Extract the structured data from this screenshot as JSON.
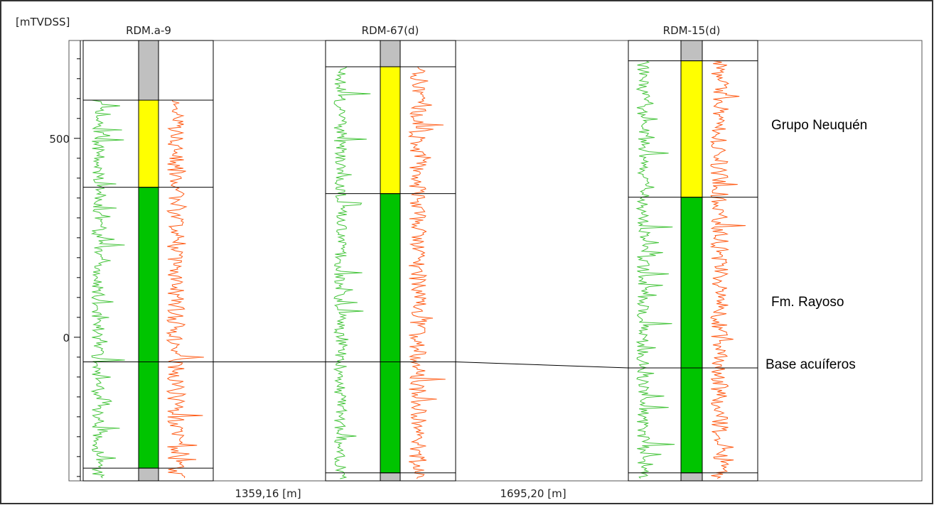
{
  "axis": {
    "label": "[mTVDSS]",
    "ylim": [
      -361,
      746
    ],
    "yticks": [
      0,
      500
    ],
    "minor_yticks": [
      -350,
      -300,
      -250,
      -200,
      -150,
      -100,
      -50,
      50,
      100,
      150,
      200,
      250,
      300,
      350,
      400,
      450,
      550,
      600,
      650,
      700
    ]
  },
  "wells": [
    {
      "name": "RDM.a-9",
      "tops": [
        596,
        377,
        -62,
        -329
      ]
    },
    {
      "name": "RDM-67(d)",
      "tops": [
        680,
        361,
        -62,
        -341
      ]
    },
    {
      "name": "RDM-15(d)",
      "tops": [
        695,
        352,
        -77,
        -341
      ]
    }
  ],
  "formations": [
    "Grupo Neuquén",
    "Fm. Rayoso",
    "Base acuíferos"
  ],
  "spacings": [
    "1359,16 [m]",
    "1695,20 [m]"
  ]
}
